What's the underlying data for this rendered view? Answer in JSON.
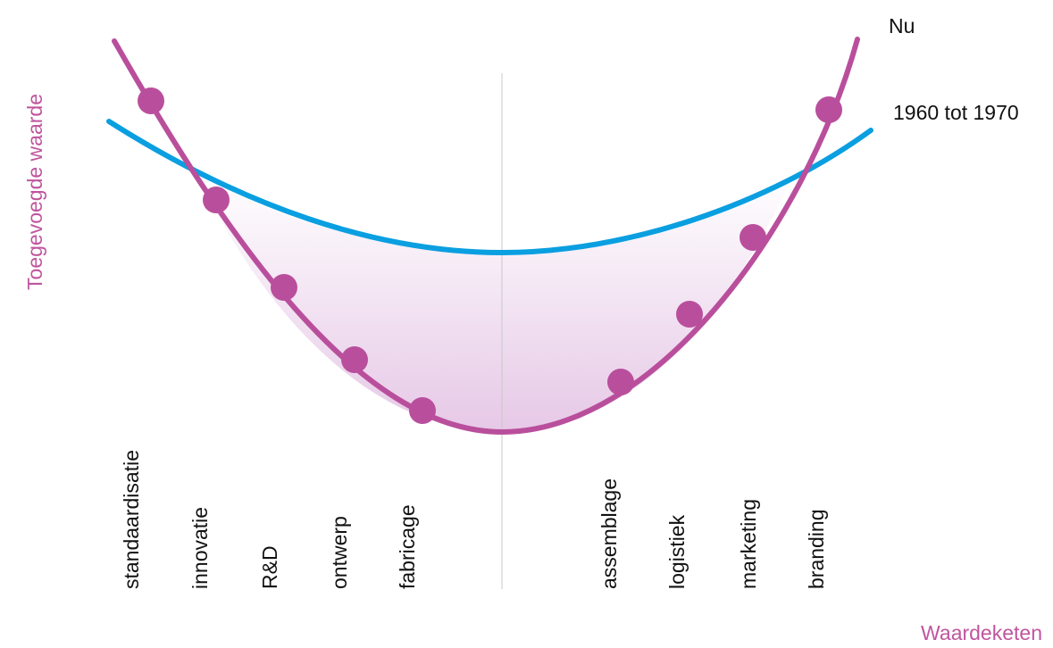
{
  "colors": {
    "now_curve": "#b94f9c",
    "past_curve": "#0a9fe0",
    "axis_text": "#c0559e",
    "center_line": "#c8c8c8",
    "label_text": "#111111",
    "fill_top": "#ffffff",
    "fill_bottom": "#e6c8e6"
  },
  "axes": {
    "y_label": "Toegevoegde waarde",
    "x_label": "Waardeketen"
  },
  "legend": {
    "now": "Nu",
    "past": "1960 tot 1970"
  },
  "chain_labels": [
    "standaardisatie",
    "innovatie",
    "R&D",
    "ontwerp",
    "fabricage",
    "assemblage",
    "logistiek",
    "marketing",
    "branding"
  ]
}
